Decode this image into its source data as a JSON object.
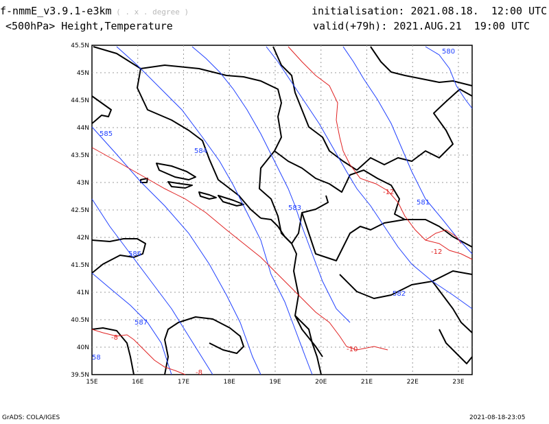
{
  "header": {
    "model": "f-nmmE_v3.9.1-e3km",
    "model_suffix": " ( . x . degree )",
    "field": "<500hPa> Height,Temperature",
    "init_label": "initialisation:",
    "init_value": "2021.08.18.  12:00 UTC",
    "valid_label": "valid(+79h):",
    "valid_value": "2021.AUG.21  19:00 UTC"
  },
  "footer": {
    "credit": "GrADS: COLA/IGES",
    "timestamp": "2021-08-18-23:05"
  },
  "colors": {
    "height_contour": "#2040ff",
    "temperature_contour": "#e02020",
    "border": "#000000",
    "grid": "#999999"
  },
  "map": {
    "lon_range": [
      15,
      23.3
    ],
    "lat_range": [
      39.5,
      45.5
    ],
    "lon_ticks": [
      "15E",
      "16E",
      "17E",
      "18E",
      "19E",
      "20E",
      "21E",
      "22E",
      "23E"
    ],
    "lat_ticks": [
      "39.5N",
      "40N",
      "40.5N",
      "41N",
      "41.5N",
      "42N",
      "42.5N",
      "43N",
      "43.5N",
      "44N",
      "44.5N",
      "45N",
      "45.5N"
    ],
    "height_labels": [
      "580",
      "585",
      "584",
      "583",
      "581",
      "586",
      "582",
      "587",
      "58"
    ],
    "temperature_labels": [
      "-12",
      "-12",
      "-10",
      "-8",
      "-8"
    ]
  }
}
